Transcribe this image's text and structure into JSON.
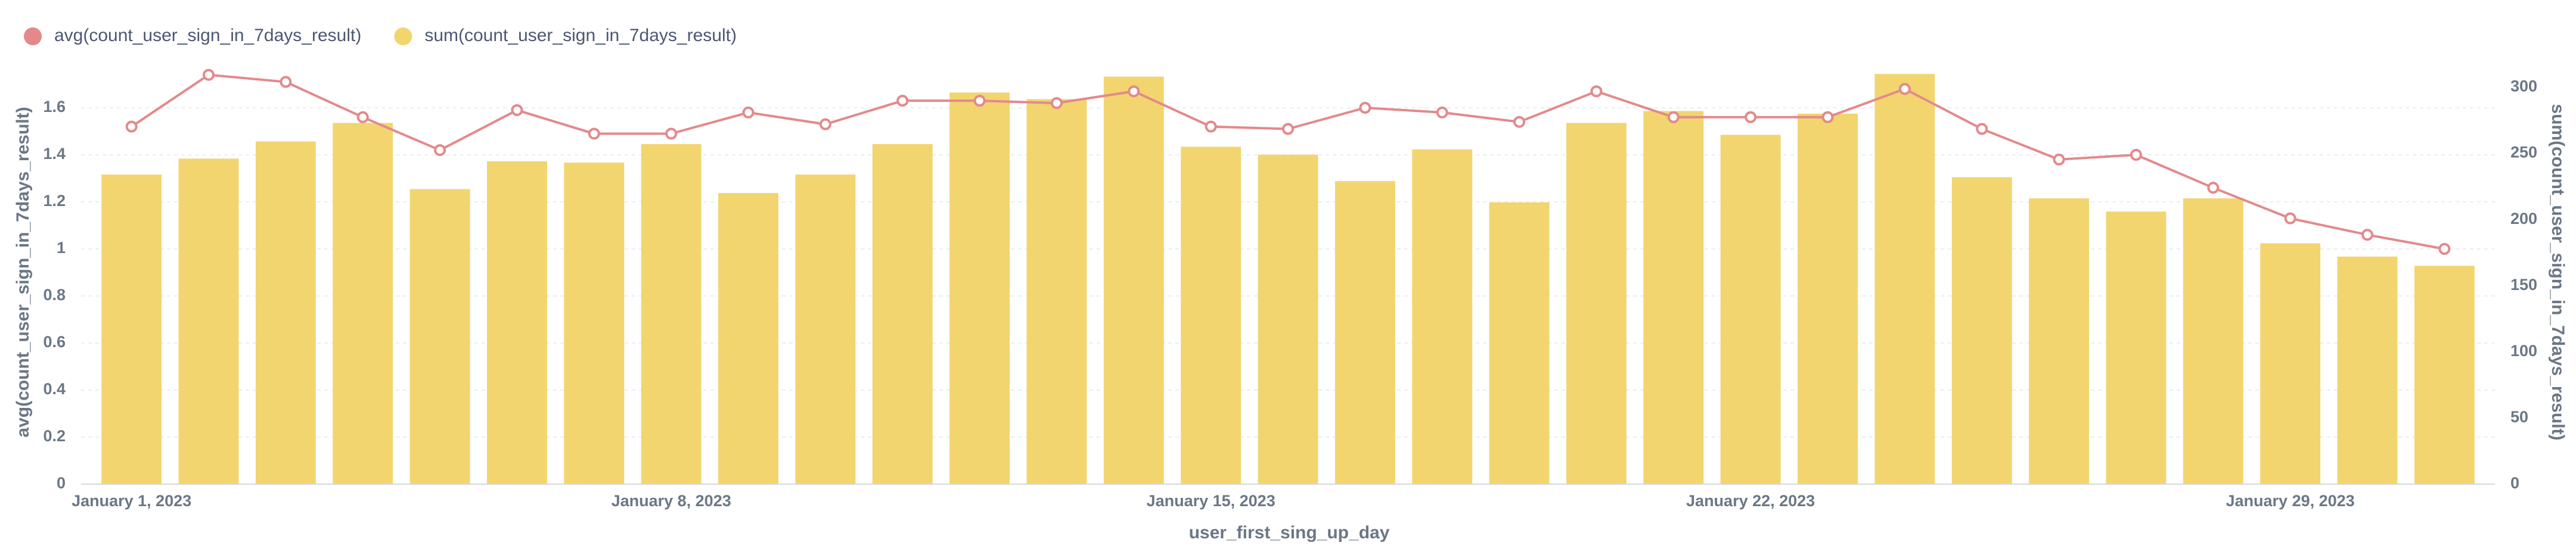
{
  "chart_data": {
    "type": "bar-line",
    "xlabel": "user_first_sing_up_day",
    "ylabel": "avg(count_user_sign_in_7days_result)",
    "y2label": "sum(count_user_sign_in_7days_result)",
    "categories": [
      "January 1, 2023",
      null,
      null,
      null,
      null,
      null,
      null,
      "January 8, 2023",
      null,
      null,
      null,
      null,
      null,
      null,
      "January 15, 2023",
      null,
      null,
      null,
      null,
      null,
      null,
      "January 22, 2023",
      null,
      null,
      null,
      null,
      null,
      null,
      "January 29, 2023",
      null,
      null
    ],
    "series": [
      {
        "name": "avg(count_user_sign_in_7days_result)",
        "type": "line",
        "color": "#e3898b",
        "values": [
          1.52,
          1.74,
          1.71,
          1.56,
          1.42,
          1.59,
          1.49,
          1.49,
          1.58,
          1.53,
          1.63,
          1.63,
          1.62,
          1.67,
          1.52,
          1.51,
          1.6,
          1.58,
          1.54,
          1.67,
          1.56,
          1.56,
          1.56,
          1.68,
          1.51,
          1.38,
          1.4,
          1.26,
          1.13,
          1.06,
          1.0
        ]
      },
      {
        "name": "sum(count_user_sign_in_7days_result)",
        "type": "bar",
        "axis": "y2",
        "color": "#f2d56f",
        "values": [
          234,
          246,
          259,
          273,
          223,
          244,
          243,
          257,
          220,
          234,
          257,
          296,
          291,
          308,
          255,
          249,
          229,
          253,
          213,
          273,
          282,
          264,
          280,
          310,
          232,
          216,
          206,
          216,
          182,
          172,
          165
        ]
      }
    ],
    "ylim": [
      0,
      1.8
    ],
    "yticks": [
      0,
      0.2,
      0.4,
      0.6,
      0.8,
      1,
      1.2,
      1.4,
      1.6
    ],
    "y2lim": [
      0,
      320
    ],
    "y2ticks": [
      0,
      50,
      100,
      150,
      200,
      250,
      300
    ],
    "grid": true,
    "legend": "top-left"
  }
}
